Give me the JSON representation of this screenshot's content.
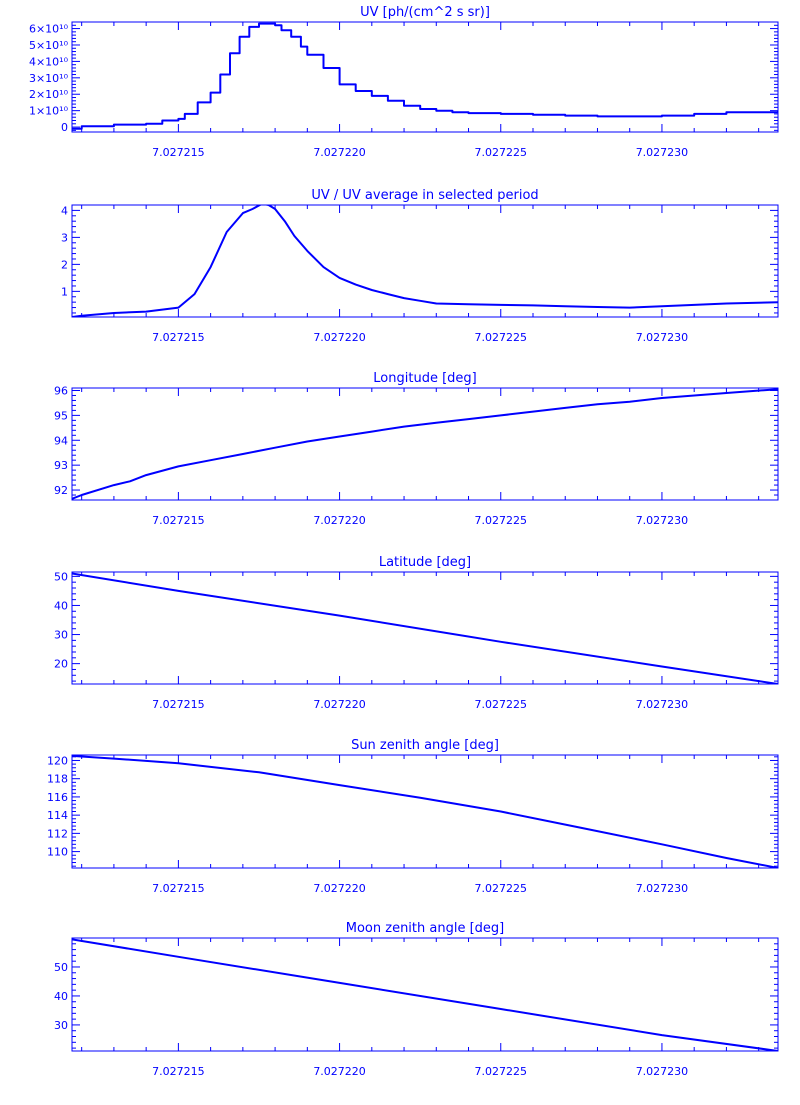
{
  "chart_data": [
    {
      "type": "line",
      "step": true,
      "title": "UV [ph/(cm^2 s sr)]",
      "xlim": [
        7.0272117,
        7.0272336
      ],
      "ylim": [
        -3000000000,
        64000000000
      ],
      "xticks": [
        7.027215,
        7.02722,
        7.027225,
        7.02723
      ],
      "xtick_labels": [
        "7.027215",
        "7.027220",
        "7.027225",
        "7.027230"
      ],
      "yticks": [
        0,
        10000000000,
        20000000000,
        30000000000,
        40000000000,
        50000000000,
        60000000000
      ],
      "ytick_labels": [
        "0",
        "1×10¹⁰",
        "2×10¹⁰",
        "3×10¹⁰",
        "4×10¹⁰",
        "5×10¹⁰",
        "6×10¹⁰"
      ],
      "series": [
        {
          "color": "#0000ff",
          "x": [
            7.0272117,
            7.027212,
            7.027213,
            7.027214,
            7.0272145,
            7.027215,
            7.0272152,
            7.0272156,
            7.027216,
            7.0272163,
            7.0272166,
            7.0272169,
            7.0272172,
            7.0272175,
            7.0272178,
            7.027218,
            7.0272182,
            7.0272185,
            7.0272188,
            7.027219,
            7.0272195,
            7.02722,
            7.0272205,
            7.027221,
            7.0272215,
            7.027222,
            7.0272225,
            7.027223,
            7.0272235,
            7.027224,
            7.027225,
            7.027226,
            7.027227,
            7.027228,
            7.027229,
            7.02723,
            7.027231,
            7.027232,
            7.0272336
          ],
          "y": [
            -1000000000,
            500000000,
            1500000000,
            2000000000,
            4000000000,
            5000000000,
            8000000000,
            15000000000,
            21000000000,
            32000000000,
            45000000000,
            55000000000,
            61000000000,
            63000000000,
            63000000000,
            62000000000,
            59000000000,
            55000000000,
            49000000000,
            44000000000,
            36000000000,
            26000000000,
            22000000000,
            19000000000,
            16000000000,
            13000000000,
            11000000000,
            10000000000,
            9000000000,
            8500000000,
            8000000000,
            7500000000,
            7000000000,
            6500000000,
            6500000000,
            7000000000,
            8000000000,
            9000000000,
            10000000000
          ]
        }
      ]
    },
    {
      "type": "line",
      "title": "UV / UV average in selected period",
      "xlim": [
        7.0272117,
        7.0272336
      ],
      "ylim": [
        0.05,
        4.2
      ],
      "xticks": [
        7.027215,
        7.02722,
        7.027225,
        7.02723
      ],
      "xtick_labels": [
        "7.027215",
        "7.027220",
        "7.027225",
        "7.027230"
      ],
      "yticks": [
        1,
        2,
        3,
        4
      ],
      "ytick_labels": [
        "1",
        "2",
        "3",
        "4"
      ],
      "series": [
        {
          "color": "#0000ff",
          "x": [
            7.0272117,
            7.027212,
            7.027213,
            7.027214,
            7.027215,
            7.0272155,
            7.027216,
            7.0272165,
            7.027217,
            7.0272173,
            7.0272176,
            7.0272178,
            7.027218,
            7.0272183,
            7.0272186,
            7.027219,
            7.0272195,
            7.02722,
            7.0272205,
            7.027221,
            7.0272215,
            7.027222,
            7.0272225,
            7.027223,
            7.027224,
            7.027225,
            7.027226,
            7.027227,
            7.027228,
            7.027229,
            7.02723,
            7.027231,
            7.027232,
            7.0272336
          ],
          "y": [
            0.05,
            0.1,
            0.2,
            0.25,
            0.4,
            0.9,
            1.9,
            3.2,
            3.9,
            4.05,
            4.25,
            4.2,
            4.05,
            3.6,
            3.05,
            2.5,
            1.9,
            1.5,
            1.25,
            1.05,
            0.9,
            0.75,
            0.65,
            0.55,
            0.52,
            0.5,
            0.48,
            0.45,
            0.42,
            0.4,
            0.45,
            0.5,
            0.55,
            0.6
          ]
        }
      ]
    },
    {
      "type": "line",
      "title": "Longitude [deg]",
      "xlim": [
        7.0272117,
        7.0272336
      ],
      "ylim": [
        91.6,
        96.1
      ],
      "xticks": [
        7.027215,
        7.02722,
        7.027225,
        7.02723
      ],
      "xtick_labels": [
        "7.027215",
        "7.027220",
        "7.027225",
        "7.027230"
      ],
      "yticks": [
        92,
        93,
        94,
        95,
        96
      ],
      "ytick_labels": [
        "92",
        "93",
        "94",
        "95",
        "96"
      ],
      "series": [
        {
          "color": "#0000ff",
          "x": [
            7.0272117,
            7.027212,
            7.027213,
            7.0272135,
            7.027214,
            7.027215,
            7.027216,
            7.027217,
            7.027218,
            7.027219,
            7.02722,
            7.027221,
            7.027222,
            7.027223,
            7.027224,
            7.027225,
            7.027226,
            7.027227,
            7.027228,
            7.027229,
            7.02723,
            7.027231,
            7.027232,
            7.0272336
          ],
          "y": [
            91.65,
            91.8,
            92.2,
            92.35,
            92.6,
            92.95,
            93.2,
            93.45,
            93.7,
            93.95,
            94.15,
            94.35,
            94.55,
            94.7,
            94.85,
            95.0,
            95.15,
            95.3,
            95.45,
            95.55,
            95.7,
            95.8,
            95.9,
            96.05
          ]
        }
      ]
    },
    {
      "type": "line",
      "title": "Latitude [deg]",
      "xlim": [
        7.0272117,
        7.0272336
      ],
      "ylim": [
        13,
        51.5
      ],
      "xticks": [
        7.027215,
        7.02722,
        7.027225,
        7.02723
      ],
      "xtick_labels": [
        "7.027215",
        "7.027220",
        "7.027225",
        "7.027230"
      ],
      "yticks": [
        20,
        30,
        40,
        50
      ],
      "ytick_labels": [
        "20",
        "30",
        "40",
        "50"
      ],
      "series": [
        {
          "color": "#0000ff",
          "x": [
            7.0272117,
            7.027215,
            7.02722,
            7.027225,
            7.02723,
            7.0272336
          ],
          "y": [
            51.0,
            45.0,
            36.5,
            27.5,
            19.0,
            13.0
          ]
        }
      ]
    },
    {
      "type": "line",
      "title": "Sun zenith angle [deg]",
      "xlim": [
        7.0272117,
        7.0272336
      ],
      "ylim": [
        108.2,
        120.6
      ],
      "xticks": [
        7.027215,
        7.02722,
        7.027225,
        7.02723
      ],
      "xtick_labels": [
        "7.027215",
        "7.027220",
        "7.027225",
        "7.027230"
      ],
      "yticks": [
        110,
        112,
        114,
        116,
        118,
        120
      ],
      "ytick_labels": [
        "110",
        "112",
        "114",
        "116",
        "118",
        "120"
      ],
      "series": [
        {
          "color": "#0000ff",
          "x": [
            7.0272117,
            7.027213,
            7.027215,
            7.0272175,
            7.02722,
            7.0272225,
            7.027225,
            7.0272275,
            7.02723,
            7.027232,
            7.0272336
          ],
          "y": [
            120.5,
            120.2,
            119.7,
            118.7,
            117.3,
            115.9,
            114.4,
            112.6,
            110.8,
            109.3,
            108.2
          ]
        }
      ]
    },
    {
      "type": "line",
      "title": "Moon zenith angle [deg]",
      "xlim": [
        7.0272117,
        7.0272336
      ],
      "ylim": [
        21,
        60
      ],
      "xticks": [
        7.027215,
        7.02722,
        7.027225,
        7.02723
      ],
      "xtick_labels": [
        "7.027215",
        "7.027220",
        "7.027225",
        "7.027230"
      ],
      "yticks": [
        30,
        40,
        50
      ],
      "ytick_labels": [
        "30",
        "40",
        "50"
      ],
      "series": [
        {
          "color": "#0000ff",
          "x": [
            7.0272117,
            7.027215,
            7.02722,
            7.027225,
            7.02723,
            7.0272336
          ],
          "y": [
            59.5,
            53.5,
            44.5,
            35.5,
            26.5,
            21.0
          ]
        }
      ]
    }
  ]
}
